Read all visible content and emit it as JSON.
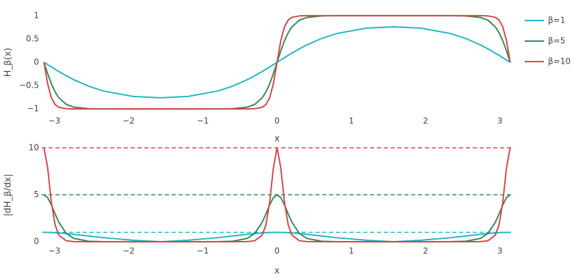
{
  "chart_data": [
    {
      "type": "line",
      "ylabel": "H_β(x)",
      "xlabel": "x",
      "x": [
        -3.14,
        -3.09,
        -3.04,
        -2.99,
        -2.94,
        -2.84,
        -2.74,
        -2.54,
        -2.34,
        -1.94,
        -1.571,
        -1.2,
        -0.8,
        -0.6,
        -0.4,
        -0.3,
        -0.2,
        -0.15,
        -0.1,
        -0.05,
        0,
        0.05,
        0.1,
        0.15,
        0.2,
        0.3,
        0.4,
        0.6,
        0.8,
        1.2,
        1.571,
        1.94,
        2.34,
        2.54,
        2.74,
        2.84,
        2.94,
        2.99,
        3.04,
        3.09,
        3.14
      ],
      "series": [
        {
          "name": "β=1",
          "color": "#1fb5c9",
          "values": [
            0,
            -0.05,
            -0.0995,
            -0.1483,
            -0.1961,
            -0.2873,
            -0.3709,
            -0.5114,
            -0.6152,
            -0.7314,
            -0.7616,
            -0.7314,
            -0.6152,
            -0.5114,
            -0.3709,
            -0.2873,
            -0.1961,
            -0.1483,
            -0.0995,
            -0.05,
            0,
            0.05,
            0.0995,
            0.1483,
            0.1961,
            0.2873,
            0.3709,
            0.5114,
            0.6152,
            0.7314,
            0.7616,
            0.7314,
            0.6152,
            0.5114,
            0.3709,
            0.2873,
            0.1961,
            0.1483,
            0.0995,
            0.05,
            0
          ]
        },
        {
          "name": "β=5",
          "color": "#2e8b57",
          "values": [
            0,
            -0.2449,
            -0.4612,
            -0.6334,
            -0.759,
            -0.9012,
            -0.9603,
            -0.993,
            -0.9985,
            -0.9998,
            -0.9999,
            -0.9998,
            -0.9985,
            -0.993,
            -0.9603,
            -0.9012,
            -0.759,
            -0.6334,
            -0.4612,
            -0.2449,
            0,
            0.2449,
            0.4612,
            0.6334,
            0.759,
            0.9012,
            0.9603,
            0.993,
            0.9985,
            0.9998,
            0.9999,
            0.9998,
            0.9985,
            0.993,
            0.9603,
            0.9012,
            0.759,
            0.6334,
            0.4612,
            0.2449,
            0
          ]
        },
        {
          "name": "β=10",
          "color": "#d64545",
          "values": [
            0,
            -0.4621,
            -0.761,
            -0.904,
            -0.9631,
            -0.9946,
            -0.9992,
            -1,
            -1,
            -1,
            -1,
            -1,
            -1,
            -1,
            -0.9992,
            -0.9946,
            -0.9631,
            -0.904,
            -0.761,
            -0.4621,
            0,
            0.4621,
            0.761,
            0.904,
            0.9631,
            0.9946,
            0.9992,
            1,
            1,
            1,
            1,
            1,
            1,
            1,
            0.9992,
            0.9946,
            0.9631,
            0.904,
            0.761,
            0.4621,
            0
          ]
        }
      ],
      "xlim": [
        -3.17,
        3.17
      ],
      "xticks": [
        {
          "value": -3,
          "label": "−3"
        },
        {
          "value": -2,
          "label": "−2"
        },
        {
          "value": -1,
          "label": "−1"
        },
        0,
        1,
        2,
        3
      ],
      "ylim": [
        -1.1,
        1.1
      ],
      "yticks": [
        {
          "value": -1,
          "label": "−1"
        },
        {
          "value": -0.5,
          "label": "−0.5"
        },
        0,
        0.5,
        1
      ],
      "grid": false,
      "legend": "right"
    },
    {
      "type": "line",
      "ylabel": "|dH_β/dx|",
      "xlabel": "x",
      "x": [
        -3.14,
        -3.09,
        -3.04,
        -2.99,
        -2.94,
        -2.84,
        -2.74,
        -2.54,
        -2.34,
        -1.94,
        -1.571,
        -1.2,
        -0.8,
        -0.6,
        -0.4,
        -0.3,
        -0.2,
        -0.15,
        -0.1,
        -0.05,
        0,
        0.05,
        0.1,
        0.15,
        0.2,
        0.3,
        0.4,
        0.6,
        0.8,
        1.2,
        1.571,
        1.94,
        2.34,
        2.54,
        2.74,
        2.84,
        2.94,
        2.99,
        3.04,
        3.09,
        3.14
      ],
      "series": [
        {
          "color": "#1fb5c9",
          "values": [
            1,
            0.996,
            0.985,
            0.967,
            0.942,
            0.876,
            0.794,
            0.609,
            0.433,
            0.169,
            0,
            0.169,
            0.433,
            0.609,
            0.794,
            0.876,
            0.942,
            0.967,
            0.985,
            0.996,
            1,
            0.996,
            0.985,
            0.967,
            0.942,
            0.876,
            0.794,
            0.609,
            0.433,
            0.169,
            0,
            0.169,
            0.433,
            0.609,
            0.794,
            0.876,
            0.942,
            0.967,
            0.985,
            0.996,
            1
          ]
        },
        {
          "color": "#2e8b57",
          "values": [
            5,
            4.694,
            3.917,
            2.96,
            2.077,
            0.897,
            0.358,
            0.058,
            0.01,
            0,
            0,
            0,
            0.01,
            0.058,
            0.358,
            0.897,
            2.077,
            2.96,
            3.917,
            4.694,
            5,
            4.694,
            3.917,
            2.96,
            2.077,
            0.897,
            0.358,
            0.058,
            0.01,
            0,
            0,
            0,
            0.01,
            0.058,
            0.358,
            0.897,
            2.077,
            2.96,
            3.917,
            4.694,
            5
          ]
        },
        {
          "color": "#d64545",
          "values": [
            10,
            7.855,
            4.188,
            1.808,
            0.71,
            0.103,
            0.015,
            0,
            0,
            0,
            0,
            0,
            0,
            0,
            0.015,
            0.103,
            0.71,
            1.808,
            4.188,
            7.855,
            10,
            7.855,
            4.188,
            1.808,
            0.71,
            0.103,
            0.015,
            0,
            0,
            0,
            0,
            0,
            0,
            0,
            0.015,
            0.103,
            0.71,
            1.808,
            4.188,
            7.855,
            10
          ]
        }
      ],
      "reference_lines": [
        {
          "value": 1,
          "color": "#1fb5c9"
        },
        {
          "value": 5,
          "color": "#2e8b57"
        },
        {
          "value": 10,
          "color": "#d64545"
        }
      ],
      "xlim": [
        -3.17,
        3.17
      ],
      "xticks": [
        {
          "value": -3,
          "label": "−3"
        },
        {
          "value": -2,
          "label": "−2"
        },
        {
          "value": -1,
          "label": "−1"
        },
        0,
        1,
        2,
        3
      ],
      "ylim": [
        -0.5,
        10.5
      ],
      "yticks": [
        0,
        5,
        10
      ],
      "grid": false
    }
  ]
}
